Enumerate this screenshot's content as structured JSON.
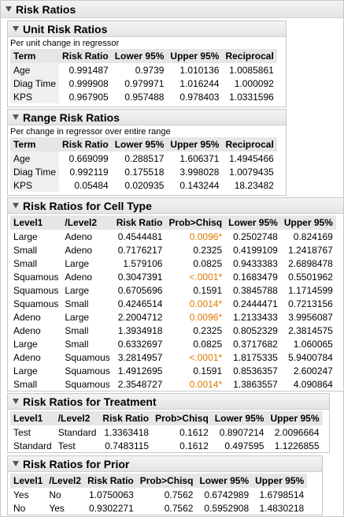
{
  "title": "Risk Ratios",
  "unit": {
    "title": "Unit Risk Ratios",
    "note": "Per unit change in regressor",
    "headers": [
      "Term",
      "Risk Ratio",
      "Lower 95%",
      "Upper 95%",
      "Reciprocal"
    ],
    "rows": [
      [
        "Age",
        "0.991487",
        "0.9739",
        "1.010136",
        "1.0085861"
      ],
      [
        "Diag Time",
        "0.999908",
        "0.979971",
        "1.016244",
        "1.000092"
      ],
      [
        "KPS",
        "0.967905",
        "0.957488",
        "0.978403",
        "1.0331596"
      ]
    ]
  },
  "range": {
    "title": "Range Risk Ratios",
    "note": "Per change in regressor over entire range",
    "headers": [
      "Term",
      "Risk Ratio",
      "Lower 95%",
      "Upper 95%",
      "Reciprocal"
    ],
    "rows": [
      [
        "Age",
        "0.669099",
        "0.288517",
        "1.606371",
        "1.4945466"
      ],
      [
        "Diag Time",
        "0.992119",
        "0.175518",
        "3.998028",
        "1.0079435"
      ],
      [
        "KPS",
        "0.05484",
        "0.020935",
        "0.143244",
        "18.23482"
      ]
    ]
  },
  "cell": {
    "title": "Risk Ratios for Cell Type",
    "headers": [
      "Level1",
      "/Level2",
      "Risk Ratio",
      "Prob>Chisq",
      "Lower 95%",
      "Upper 95%"
    ],
    "rows": [
      [
        "Large",
        "Adeno",
        "0.4544481",
        "0.0096*",
        "0.2502748",
        "0.824169"
      ],
      [
        "Small",
        "Adeno",
        "0.7176217",
        "0.2325",
        "0.4199109",
        "1.2418767"
      ],
      [
        "Small",
        "Large",
        "1.579106",
        "0.0825",
        "0.9433383",
        "2.6898478"
      ],
      [
        "Squamous",
        "Adeno",
        "0.3047391",
        "<.0001*",
        "0.1683479",
        "0.5501962"
      ],
      [
        "Squamous",
        "Large",
        "0.6705696",
        "0.1591",
        "0.3845788",
        "1.1714599"
      ],
      [
        "Squamous",
        "Small",
        "0.4246514",
        "0.0014*",
        "0.2444471",
        "0.7213156"
      ],
      [
        "Adeno",
        "Large",
        "2.2004712",
        "0.0096*",
        "1.2133433",
        "3.9956087"
      ],
      [
        "Adeno",
        "Small",
        "1.3934918",
        "0.2325",
        "0.8052329",
        "2.3814575"
      ],
      [
        "Large",
        "Small",
        "0.6332697",
        "0.0825",
        "0.3717682",
        "1.060065"
      ],
      [
        "Adeno",
        "Squamous",
        "3.2814957",
        "<.0001*",
        "1.8175335",
        "5.9400784"
      ],
      [
        "Large",
        "Squamous",
        "1.4912695",
        "0.1591",
        "0.8536357",
        "2.600247"
      ],
      [
        "Small",
        "Squamous",
        "2.3548727",
        "0.0014*",
        "1.3863557",
        "4.090864"
      ]
    ]
  },
  "treatment": {
    "title": "Risk Ratios for Treatment",
    "headers": [
      "Level1",
      "/Level2",
      "Risk Ratio",
      "Prob>Chisq",
      "Lower 95%",
      "Upper 95%"
    ],
    "rows": [
      [
        "Test",
        "Standard",
        "1.3363418",
        "0.1612",
        "0.8907214",
        "2.0096664"
      ],
      [
        "Standard",
        "Test",
        "0.7483115",
        "0.1612",
        "0.497595",
        "1.1226855"
      ]
    ]
  },
  "prior": {
    "title": "Risk Ratios for Prior",
    "headers": [
      "Level1",
      "/Level2",
      "Risk Ratio",
      "Prob>Chisq",
      "Lower 95%",
      "Upper 95%"
    ],
    "rows": [
      [
        "Yes",
        "No",
        "1.0750063",
        "0.7562",
        "0.6742989",
        "1.6798514"
      ],
      [
        "No",
        "Yes",
        "0.9302271",
        "0.7562",
        "0.5952908",
        "1.4830218"
      ]
    ]
  },
  "colors": {
    "significant": "#e07a00",
    "header_bg": "#e6e6e6"
  }
}
